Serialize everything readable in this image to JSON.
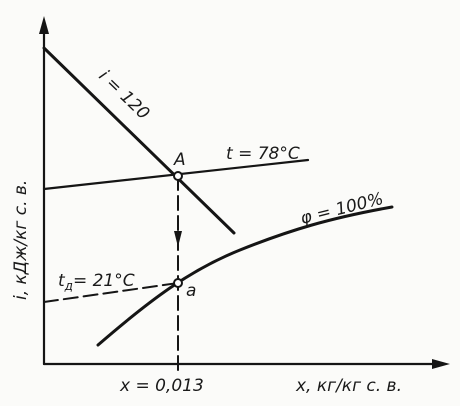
{
  "diagram": {
    "y_axis_label": "i, кДж/кг  с. в.",
    "x_axis_label": "x, кг/кг  с. в.",
    "x_tick_label": "x = 0,013",
    "enthalpy_line_label": "i = 120",
    "temperature_line_label": "t = 78°C",
    "saturation_curve_label": "φ = 100%",
    "dew_point_label": "t",
    "dew_point_subscript": "д",
    "dew_point_value": "= 21°C",
    "point_A_label": "A",
    "point_a_label": "a"
  }
}
